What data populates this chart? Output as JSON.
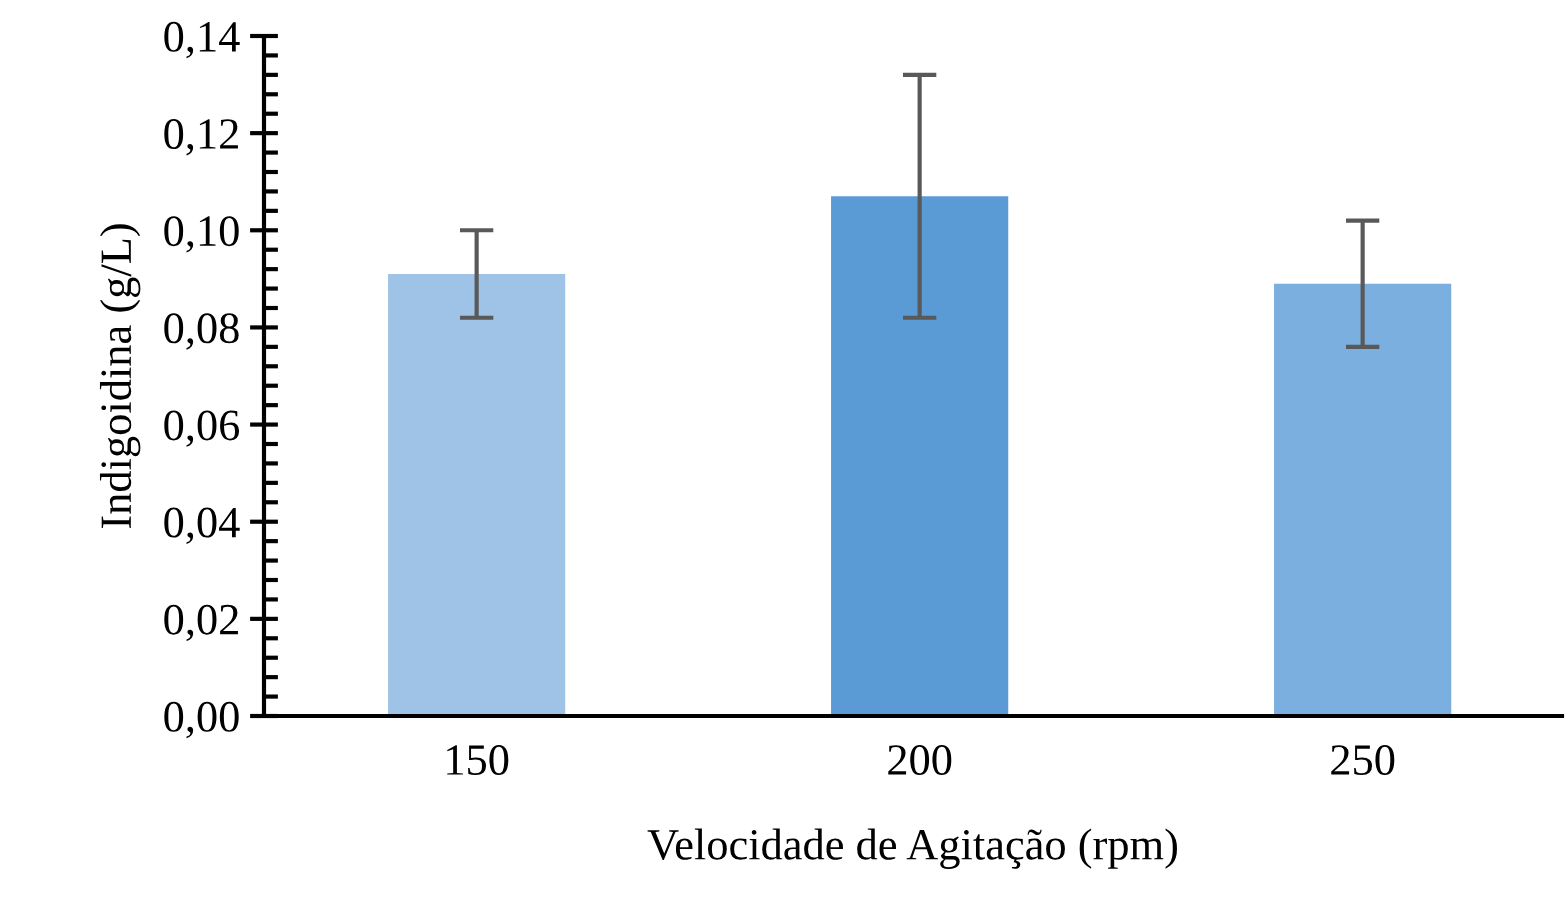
{
  "chart_data": {
    "type": "bar",
    "xlabel": "Velocidade de Agitação (rpm)",
    "ylabel": "Indigoidina (g/L)",
    "categories": [
      "150",
      "200",
      "250"
    ],
    "values": [
      0.091,
      0.107,
      0.089
    ],
    "errors": [
      0.009,
      0.025,
      0.013
    ],
    "colors": [
      "#9fc3e7",
      "#5b9bd5",
      "#7aafe0"
    ],
    "ylim": [
      0,
      0.14
    ],
    "yticks": [
      {
        "value": 0,
        "label": "0,00"
      },
      {
        "value": 0.02,
        "label": "0,02"
      },
      {
        "value": 0.04,
        "label": "0,04"
      },
      {
        "value": 0.06,
        "label": "0,06"
      },
      {
        "value": 0.08,
        "label": "0,08"
      },
      {
        "value": 0.1,
        "label": "0,10"
      },
      {
        "value": 0.12,
        "label": "0,12"
      },
      {
        "value": 0.14,
        "label": "0,14"
      }
    ],
    "grid": false,
    "legend": false
  }
}
